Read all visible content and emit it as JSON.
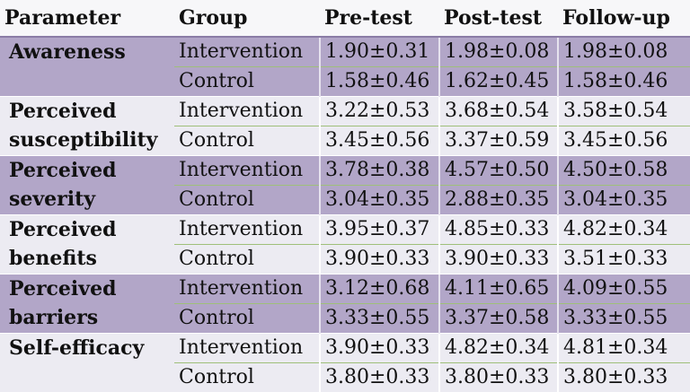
{
  "table": {
    "headers": [
      "Parameter",
      "Group",
      "Pre-test",
      "Post-test",
      "Follow-up"
    ],
    "sections": [
      {
        "parameter_lines": [
          "Awareness"
        ],
        "shade": "dark",
        "rows": [
          {
            "group": "Intervention",
            "pre": "1.90±0.31",
            "post": "1.98±0.08",
            "follow": "1.98±0.08"
          },
          {
            "group": "Control",
            "pre": "1.58±0.46",
            "post": "1.62±0.45",
            "follow": "1.58±0.46"
          }
        ]
      },
      {
        "parameter_lines": [
          "Perceived",
          "susceptibility"
        ],
        "shade": "light",
        "rows": [
          {
            "group": "Intervention",
            "pre": "3.22±0.53",
            "post": "3.68±0.54",
            "follow": "3.58±0.54"
          },
          {
            "group": "Control",
            "pre": "3.45±0.56",
            "post": "3.37±0.59",
            "follow": "3.45±0.56"
          }
        ]
      },
      {
        "parameter_lines": [
          "Perceived",
          "severity"
        ],
        "shade": "dark",
        "rows": [
          {
            "group": "Intervention",
            "pre": "3.78±0.38",
            "post": "4.57±0.50",
            "follow": "4.50±0.58"
          },
          {
            "group": "Control",
            "pre": "3.04±0.35",
            "post": "2.88±0.35",
            "follow": "3.04±0.35"
          }
        ]
      },
      {
        "parameter_lines": [
          "Perceived",
          "benefits"
        ],
        "shade": "light",
        "rows": [
          {
            "group": "Intervention",
            "pre": "3.95±0.37",
            "post": "4.85±0.33",
            "follow": "4.82±0.34"
          },
          {
            "group": "Control",
            "pre": "3.90±0.33",
            "post": "3.90±0.33",
            "follow": "3.51±0.33"
          }
        ]
      },
      {
        "parameter_lines": [
          "Perceived",
          "barriers"
        ],
        "shade": "dark",
        "rows": [
          {
            "group": "Intervention",
            "pre": "3.12±0.68",
            "post": "4.11±0.65",
            "follow": "4.09±0.55"
          },
          {
            "group": "Control",
            "pre": "3.33±0.55",
            "post": "3.37±0.58",
            "follow": "3.33±0.55"
          }
        ]
      },
      {
        "parameter_lines": [
          "Self-efficacy"
        ],
        "shade": "light",
        "rows": [
          {
            "group": "Intervention",
            "pre": "3.90±0.33",
            "post": "4.82±0.34",
            "follow": "4.81±0.34"
          },
          {
            "group": "Control",
            "pre": "3.80±0.33",
            "post": "3.80±0.33",
            "follow": "3.80±0.33"
          }
        ]
      }
    ]
  },
  "colors": {
    "dark_row": "#b2a6c8",
    "light_row": "#ecebf2",
    "header_rule": "#8a7ca6",
    "sub_rule": "#9fbf7a"
  }
}
